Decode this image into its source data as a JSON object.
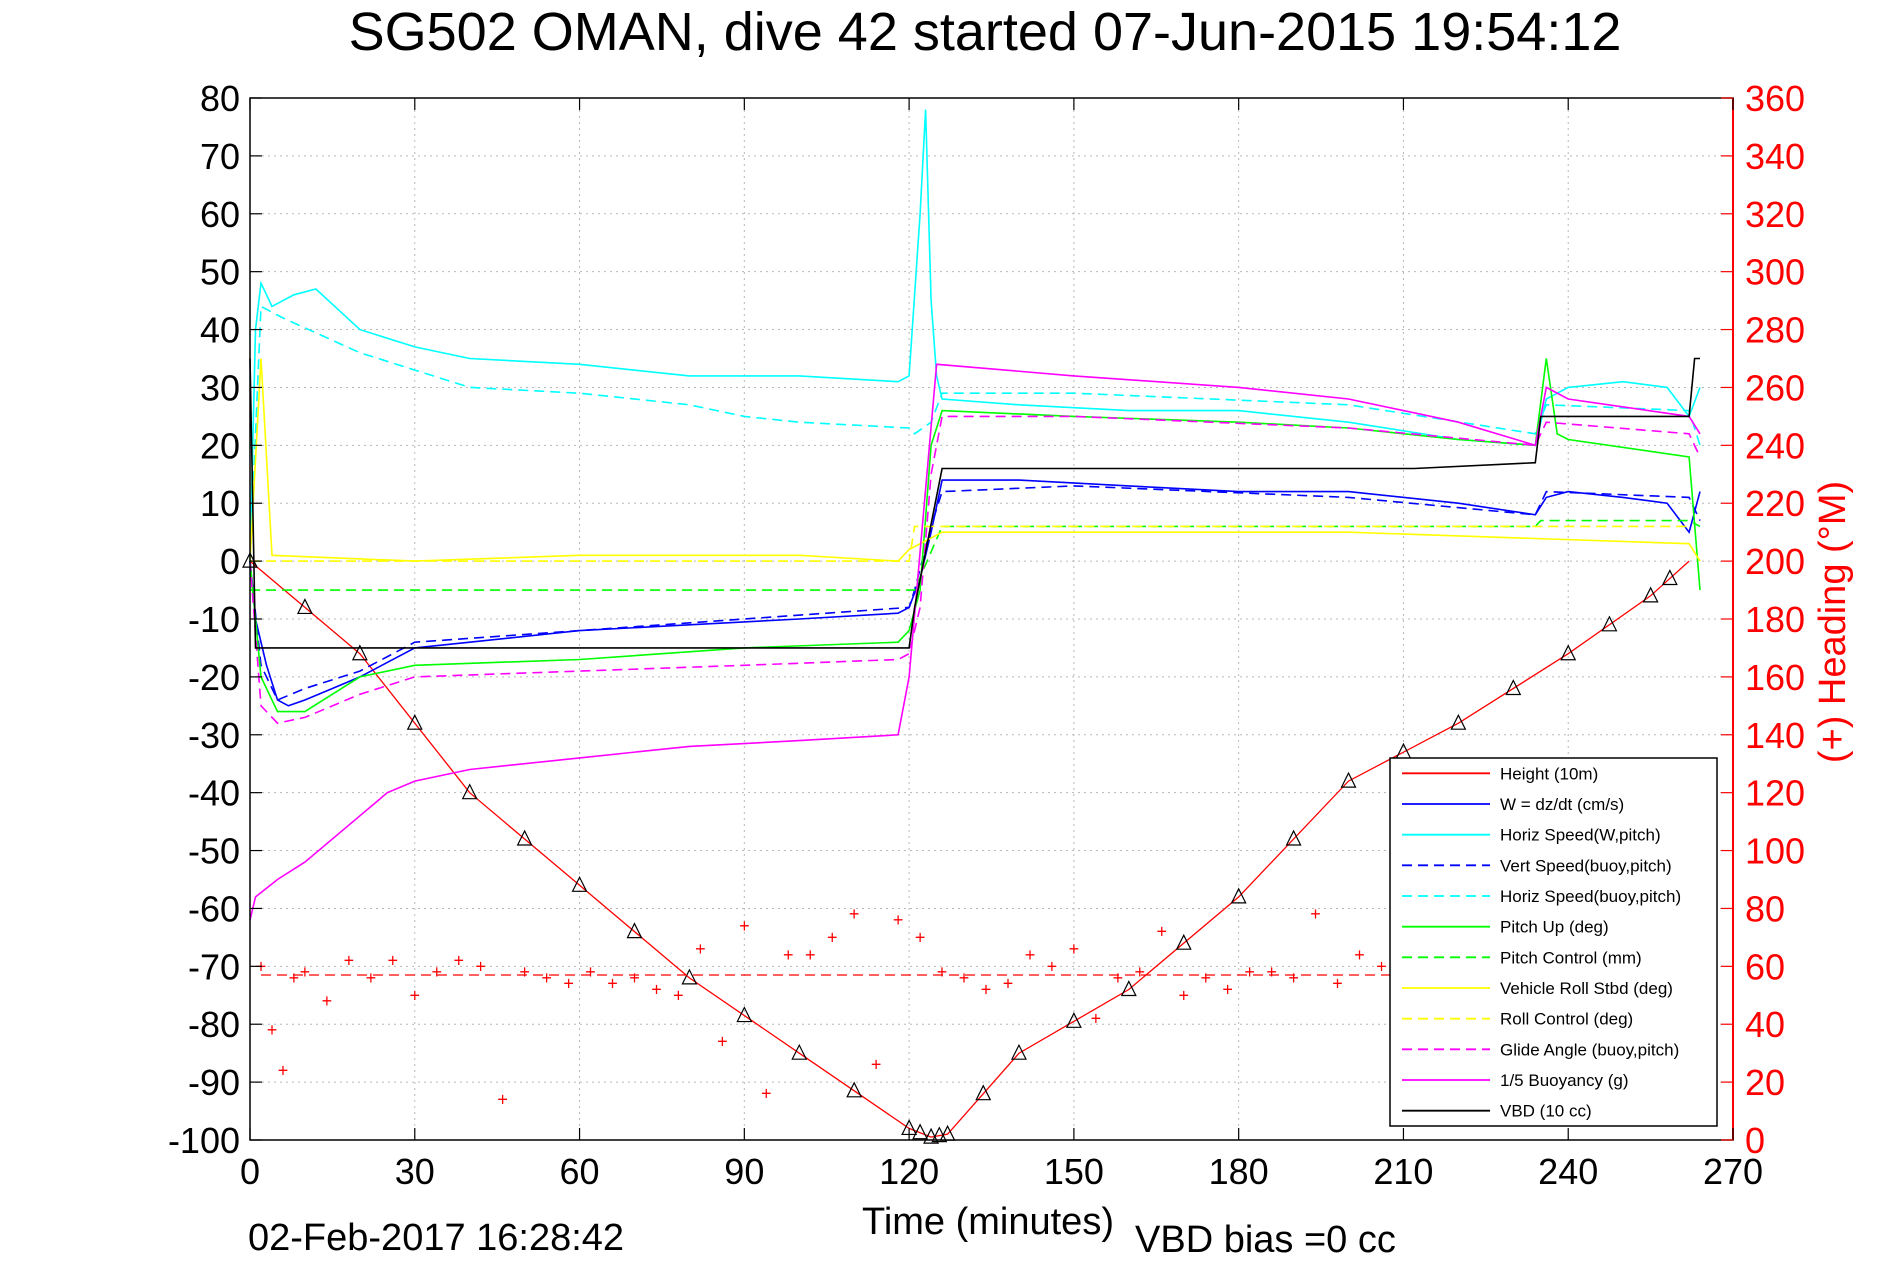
{
  "chart_data": {
    "type": "line",
    "title": "SG502 OMAN, dive 42 started 07-Jun-2015 19:54:12",
    "xlabel": "Time (minutes)",
    "ylabel": "",
    "y2label": "(+) Heading (°M)",
    "footer_left": "02-Feb-2017 16:28:42",
    "footer_right": "VBD bias =0 cc",
    "xlim": [
      0,
      270
    ],
    "ylim": [
      -100,
      80
    ],
    "y2lim": [
      0,
      360
    ],
    "xticks": [
      "0",
      "30",
      "60",
      "90",
      "120",
      "150",
      "180",
      "210",
      "240",
      "270"
    ],
    "yticks": [
      "80",
      "70",
      "60",
      "50",
      "40",
      "30",
      "20",
      "10",
      "0",
      "-10",
      "-20",
      "-30",
      "-40",
      "-50",
      "-60",
      "-70",
      "-80",
      "-90",
      "-100"
    ],
    "y2ticks": [
      "360",
      "340",
      "320",
      "300",
      "280",
      "260",
      "240",
      "220",
      "200",
      "180",
      "160",
      "140",
      "120",
      "100",
      "80",
      "60",
      "40",
      "20",
      "0"
    ],
    "grid": true,
    "legend_position": "bottom-right",
    "colors": {
      "axis_right": "#ff0000",
      "height": "#ff0000",
      "w": "#0000ff",
      "horiz": "#00ffff",
      "pitch": "#00ff00",
      "roll": "#ffff00",
      "glide": "#ff00ff",
      "vbd": "#000000"
    },
    "series": [
      {
        "name": "Height (10m)",
        "color": "#ff0000",
        "dash": "solid",
        "x": [
          0,
          20,
          40,
          60,
          80,
          100,
          120,
          124,
          127,
          140,
          160,
          180,
          200,
          220,
          240,
          255,
          262
        ],
        "y": [
          0,
          -16,
          -40,
          -56,
          -72,
          -85,
          -98,
          -99.5,
          -99,
          -85,
          -74,
          -58,
          -38,
          -28,
          -16,
          -6,
          0
        ]
      },
      {
        "name": "W = dz/dt (cm/s)",
        "color": "#0000ff",
        "dash": "solid",
        "x": [
          0,
          1,
          3,
          5,
          7,
          10,
          15,
          20,
          30,
          40,
          60,
          80,
          100,
          118,
          120,
          122,
          124,
          126,
          140,
          160,
          180,
          200,
          220,
          234,
          236,
          240,
          250,
          258,
          262,
          264
        ],
        "y": [
          0,
          -10,
          -18,
          -24,
          -25,
          -24,
          -22,
          -20,
          -15,
          -14,
          -12,
          -11,
          -10,
          -9,
          -8,
          -3,
          5,
          14,
          14,
          13,
          12,
          12,
          10,
          8,
          11,
          12,
          11,
          10,
          5,
          12
        ]
      },
      {
        "name": "Horiz Speed(W,pitch)",
        "color": "#00ffff",
        "dash": "solid",
        "x": [
          0,
          1,
          2,
          4,
          8,
          12,
          20,
          30,
          40,
          60,
          80,
          100,
          118,
          120,
          122,
          123,
          124,
          125,
          126,
          140,
          160,
          180,
          200,
          220,
          234,
          236,
          240,
          250,
          258,
          262,
          264
        ],
        "y": [
          0,
          40,
          48,
          44,
          46,
          47,
          40,
          37,
          35,
          34,
          32,
          32,
          31,
          32,
          60,
          78,
          45,
          32,
          28,
          27,
          26,
          26,
          24,
          21,
          20,
          28,
          30,
          31,
          30,
          25,
          30
        ]
      },
      {
        "name": "Vert Speed(buoy,pitch)",
        "color": "#0000ff",
        "dash": "dash",
        "x": [
          0,
          2,
          5,
          10,
          20,
          30,
          60,
          90,
          120,
          121,
          124,
          126,
          150,
          200,
          234,
          236,
          262,
          264
        ],
        "y": [
          0,
          -18,
          -24,
          -22,
          -19,
          -14,
          -12,
          -10,
          -8,
          -5,
          6,
          12,
          13,
          11,
          8,
          12,
          11,
          7
        ]
      },
      {
        "name": "Horiz Speed(buoy,pitch)",
        "color": "#00ffff",
        "dash": "dash",
        "x": [
          0,
          2,
          6,
          20,
          40,
          60,
          80,
          90,
          100,
          120,
          121,
          124,
          126,
          150,
          200,
          234,
          236,
          262,
          264
        ],
        "y": [
          0,
          44,
          42,
          36,
          30,
          29,
          27,
          25,
          24,
          23,
          22,
          24,
          29,
          29,
          27,
          22,
          27,
          26,
          20
        ]
      },
      {
        "name": "Pitch Up (deg)",
        "color": "#00ff00",
        "dash": "solid",
        "x": [
          0,
          2,
          5,
          10,
          20,
          30,
          60,
          90,
          118,
          120,
          122,
          124,
          126,
          150,
          180,
          200,
          220,
          234,
          236,
          238,
          240,
          262,
          264
        ],
        "y": [
          0,
          -20,
          -26,
          -26,
          -20,
          -18,
          -17,
          -15,
          -14,
          -12,
          -5,
          20,
          26,
          25,
          24,
          23,
          21,
          20,
          35,
          22,
          21,
          18,
          -5
        ]
      },
      {
        "name": "Pitch Control (mm)",
        "color": "#00ff00",
        "dash": "dash",
        "x": [
          0,
          1,
          120,
          121,
          126,
          234,
          235,
          262,
          264
        ],
        "y": [
          -5,
          -5,
          -5,
          -5,
          6,
          6,
          7,
          7,
          6
        ]
      },
      {
        "name": "Vehicle Roll Stbd (deg)",
        "color": "#ffff00",
        "dash": "solid",
        "x": [
          0,
          2,
          4,
          30,
          60,
          100,
          118,
          120,
          126,
          200,
          262,
          264
        ],
        "y": [
          0,
          35,
          1,
          0,
          1,
          1,
          0,
          2,
          5,
          5,
          3,
          0
        ]
      },
      {
        "name": "Roll Control (deg)",
        "color": "#ffff00",
        "dash": "dash",
        "x": [
          0,
          120,
          121,
          262
        ],
        "y": [
          0,
          0,
          6,
          6
        ]
      },
      {
        "name": "Glide Angle (buoy,pitch)",
        "color": "#ff00ff",
        "dash": "dash",
        "x": [
          0,
          2,
          5,
          10,
          20,
          30,
          60,
          90,
          118,
          120,
          122,
          124,
          126,
          150,
          200,
          234,
          236,
          262,
          264
        ],
        "y": [
          0,
          -25,
          -28,
          -27,
          -23,
          -20,
          -19,
          -18,
          -17,
          -16,
          -8,
          15,
          25,
          25,
          23,
          20,
          24,
          22,
          18
        ]
      },
      {
        "name": "1/5 Buoyancy (g)",
        "color": "#ff00ff",
        "dash": "solid",
        "x": [
          0,
          1,
          5,
          10,
          20,
          25,
          30,
          40,
          60,
          80,
          100,
          118,
          120,
          125,
          150,
          180,
          200,
          220,
          234,
          236,
          240,
          262,
          264
        ],
        "y": [
          -62,
          -58,
          -55,
          -52,
          -44,
          -40,
          -38,
          -36,
          -34,
          -32,
          -31,
          -30,
          -20,
          34,
          32,
          30,
          28,
          24,
          20,
          30,
          28,
          25,
          22
        ]
      },
      {
        "name": "VBD (10 cc)",
        "color": "#000000",
        "dash": "solid",
        "x": [
          0,
          1,
          2,
          120,
          121,
          126,
          212,
          234,
          235,
          262,
          263,
          264
        ],
        "y": [
          35,
          -15,
          -15,
          -15,
          -8,
          16,
          16,
          17,
          25,
          25,
          35,
          35
        ]
      }
    ],
    "heading": {
      "name": "Heading",
      "color": "#ff0000",
      "marker": "+",
      "axis": "right",
      "target": 57,
      "x": [
        2,
        4,
        6,
        8,
        10,
        14,
        18,
        22,
        26,
        30,
        34,
        38,
        42,
        46,
        50,
        54,
        58,
        62,
        66,
        70,
        74,
        78,
        82,
        86,
        90,
        94,
        98,
        102,
        106,
        110,
        114,
        118,
        122,
        126,
        130,
        134,
        138,
        142,
        146,
        150,
        154,
        158,
        162,
        166,
        170,
        174,
        178,
        182,
        186,
        190,
        194,
        198,
        202,
        206,
        210,
        214,
        218,
        222,
        226,
        230,
        234,
        238
      ],
      "y": [
        60,
        38,
        24,
        56,
        58,
        48,
        62,
        56,
        62,
        50,
        58,
        62,
        60,
        14,
        58,
        56,
        54,
        58,
        54,
        56,
        52,
        50,
        66,
        34,
        74,
        16,
        64,
        64,
        70,
        78,
        26,
        76,
        70,
        58,
        56,
        52,
        54,
        64,
        60,
        66,
        42,
        56,
        58,
        72,
        50,
        56,
        52,
        58,
        58,
        56,
        78,
        54,
        64,
        60,
        62,
        66,
        56,
        60,
        58,
        62,
        60,
        58
      ]
    }
  },
  "legend_items": [
    "Height (10m)",
    "W = dz/dt (cm/s)",
    "Horiz Speed(W,pitch)",
    "Vert Speed(buoy,pitch)",
    "Horiz Speed(buoy,pitch)",
    "Pitch Up (deg)",
    "Pitch Control (mm)",
    "Vehicle Roll Stbd (deg)",
    "Roll Control (deg)",
    "Glide Angle (buoy,pitch)",
    "1/5 Buoyancy (g)",
    "VBD (10 cc)"
  ]
}
